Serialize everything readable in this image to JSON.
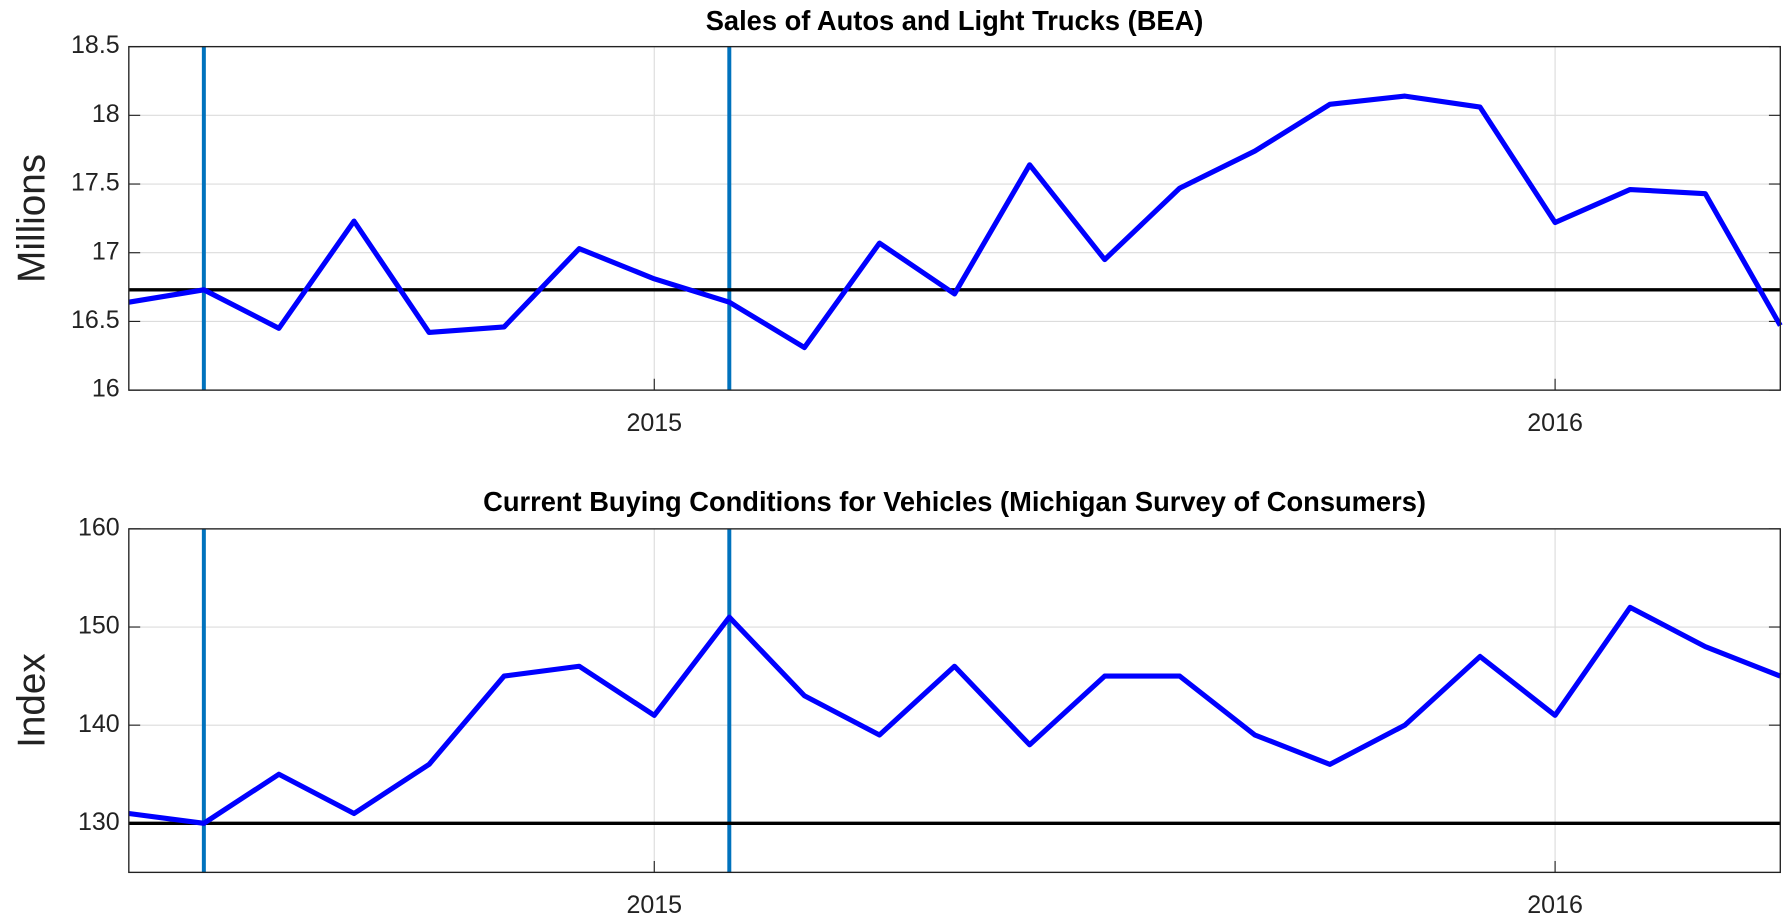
{
  "chart_data": [
    {
      "type": "line",
      "title": "Sales of Autos and Light Trucks (BEA)",
      "ylabel": "Millions",
      "x": [
        2014.4167,
        2014.5,
        2014.5833,
        2014.6667,
        2014.75,
        2014.8333,
        2014.9167,
        2015.0,
        2015.0833,
        2015.1667,
        2015.25,
        2015.3333,
        2015.4167,
        2015.5,
        2015.5833,
        2015.6667,
        2015.75,
        2015.8333,
        2015.9167,
        2016.0,
        2016.0833,
        2016.1667,
        2016.25
      ],
      "values": [
        16.64,
        16.73,
        16.45,
        17.23,
        16.42,
        16.46,
        17.03,
        16.81,
        16.64,
        16.31,
        17.07,
        16.7,
        17.64,
        16.95,
        17.47,
        17.74,
        18.08,
        18.14,
        18.06,
        17.22,
        17.46,
        17.43,
        16.47
      ],
      "color": "#0000ff",
      "xlim": [
        2014.4167,
        2016.25
      ],
      "xticks": [
        2015,
        2016
      ],
      "ylim": [
        16,
        18.5
      ],
      "yticks": [
        16,
        16.5,
        17,
        17.5,
        18,
        18.5
      ],
      "grid": true,
      "hline": 16.73,
      "vlines": [
        2014.5,
        2015.0833
      ],
      "vline_color": "#0072bd"
    },
    {
      "type": "line",
      "title": "Current Buying Conditions for Vehicles (Michigan Survey of Consumers)",
      "ylabel": "Index",
      "x": [
        2014.4167,
        2014.5,
        2014.5833,
        2014.6667,
        2014.75,
        2014.8333,
        2014.9167,
        2015.0,
        2015.0833,
        2015.1667,
        2015.25,
        2015.3333,
        2015.4167,
        2015.5,
        2015.5833,
        2015.6667,
        2015.75,
        2015.8333,
        2015.9167,
        2016.0,
        2016.0833,
        2016.1667,
        2016.25
      ],
      "values": [
        131,
        130,
        135,
        131,
        136,
        145,
        146,
        141,
        151,
        143,
        139,
        146,
        138,
        145,
        145,
        139,
        136,
        140,
        147,
        141,
        152,
        148,
        145
      ],
      "color": "#0000ff",
      "xlim": [
        2014.4167,
        2016.25
      ],
      "xticks": [
        2015,
        2016
      ],
      "ylim": [
        125,
        160
      ],
      "yticks": [
        130,
        140,
        150,
        160
      ],
      "grid": true,
      "hline": 130,
      "vlines": [
        2014.5,
        2015.0833
      ],
      "vline_color": "#0072bd"
    }
  ]
}
